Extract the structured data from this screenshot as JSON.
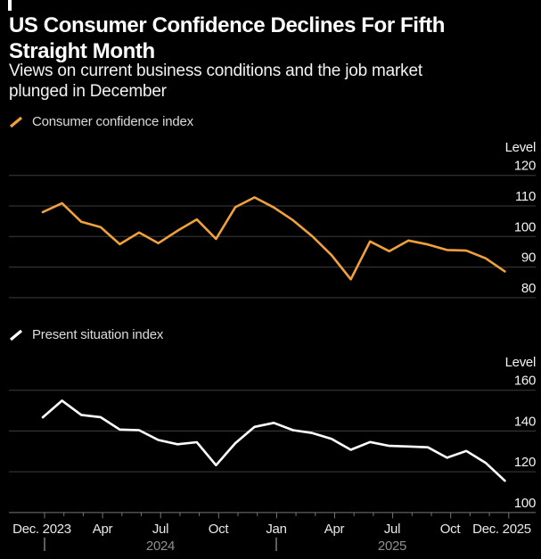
{
  "header": {
    "title_line1": "US Consumer Confidence Declines For Fifth",
    "title_line2": "Straight Month",
    "subtitle_line1": "Views on current business conditions and the job market",
    "subtitle_line2": "plunged in December"
  },
  "colors": {
    "background": "#000000",
    "orange_line": "#F1A13C",
    "white_line": "#FFFFFF",
    "gridline": "#3D3D3D",
    "axis_baseline": "#767676",
    "month_label": "#E9E9E9",
    "year_label": "#8F8F8F",
    "title_text": "#FFFFFF"
  },
  "chart_data": [
    {
      "type": "line",
      "legend": "Consumer confidence index",
      "color": "#F1A13C",
      "unit_label": "Level",
      "yticks": [
        120,
        110,
        100,
        90,
        80
      ],
      "ylim": [
        76,
        124
      ],
      "grid": true,
      "legend_position": "top-left",
      "categories": [
        "Dec 2023",
        "Jan 2024",
        "Feb 2024",
        "Mar 2024",
        "Apr 2024",
        "May 2024",
        "Jun 2024",
        "Jul 2024",
        "Aug 2024",
        "Sep 2024",
        "Oct 2024",
        "Nov 2024",
        "Dec 2024",
        "Jan 2025",
        "Feb 2025",
        "Mar 2025",
        "Apr 2025",
        "May 2025",
        "Jun 2025",
        "Jul 2025",
        "Aug 2025",
        "Sep 2025",
        "Oct 2025",
        "Nov 2025",
        "Dec 2025"
      ],
      "values": [
        108.0,
        110.9,
        104.8,
        103.1,
        97.5,
        101.3,
        97.8,
        101.9,
        105.6,
        99.2,
        109.6,
        112.8,
        109.5,
        105.3,
        100.1,
        93.9,
        86.0,
        98.4,
        95.2,
        98.7,
        97.4,
        95.6,
        95.4,
        92.9,
        88.6
      ]
    },
    {
      "type": "line",
      "legend": "Present situation index",
      "color": "#FFFFFF",
      "unit_label": "Level",
      "yticks": [
        160,
        140,
        120,
        100
      ],
      "ylim": [
        96,
        164
      ],
      "grid": true,
      "legend_position": "top-left",
      "categories": [
        "Dec 2023",
        "Jan 2024",
        "Feb 2024",
        "Mar 2024",
        "Apr 2024",
        "May 2024",
        "Jun 2024",
        "Jul 2024",
        "Aug 2024",
        "Sep 2024",
        "Oct 2024",
        "Nov 2024",
        "Dec 2024",
        "Jan 2025",
        "Feb 2025",
        "Mar 2025",
        "Apr 2025",
        "May 2025",
        "Jun 2025",
        "Jul 2025",
        "Aug 2025",
        "Sep 2025",
        "Oct 2025",
        "Nov 2025",
        "Dec 2025"
      ],
      "values": [
        146.7,
        154.9,
        147.9,
        146.8,
        140.7,
        140.4,
        135.6,
        133.5,
        134.5,
        123.2,
        134.0,
        142.0,
        144.0,
        140.4,
        139.0,
        136.1,
        130.8,
        134.6,
        132.7,
        132.4,
        132.0,
        126.9,
        130.2,
        124.4,
        115.6
      ]
    }
  ],
  "x_axis": {
    "month_labels": [
      {
        "label": "Dec. 2023",
        "x": 47
      },
      {
        "label": "Apr",
        "x": 115
      },
      {
        "label": "Jul",
        "x": 180
      },
      {
        "label": "Oct",
        "x": 245
      },
      {
        "label": "Jan",
        "x": 310
      },
      {
        "label": "Apr",
        "x": 375
      },
      {
        "label": "Jul",
        "x": 440
      },
      {
        "label": "Oct",
        "x": 505
      },
      {
        "label": "Dec. 2025",
        "x": 563
      }
    ],
    "year_labels": [
      {
        "label": "2024",
        "x": 180
      },
      {
        "label": "2025",
        "x": 440
      }
    ],
    "year_divider_x": [
      50,
      310
    ],
    "tick_months": 25
  }
}
